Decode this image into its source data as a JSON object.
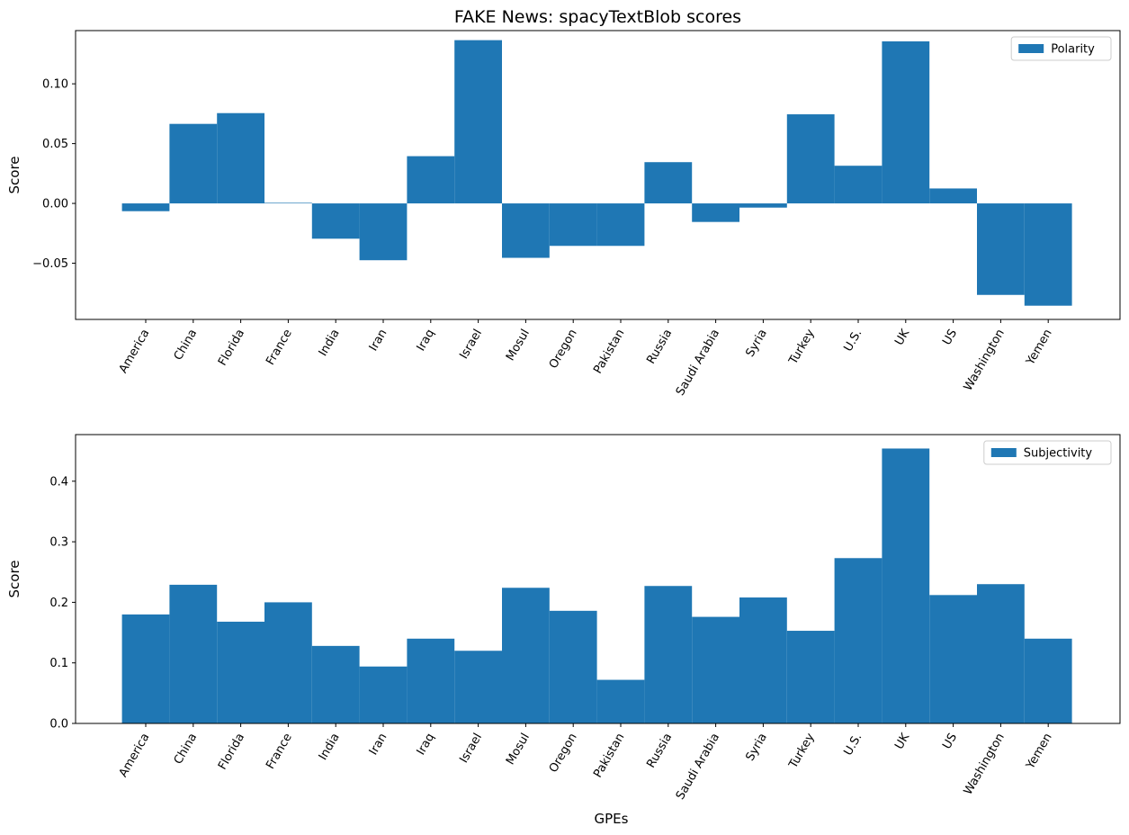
{
  "chart_data": [
    {
      "type": "bar",
      "title": "FAKE News: spacyTextBlob scores",
      "xlabel": "",
      "ylabel": "Score",
      "ylim": [
        -0.097,
        0.1445
      ],
      "yticks": [
        -0.05,
        0.0,
        0.05,
        0.1
      ],
      "ytick_labels": [
        "−0.05",
        "0.00",
        "0.05",
        "0.10"
      ],
      "grid": false,
      "legend_position": "top-right",
      "categories": [
        "America",
        "China",
        "Florida",
        "France",
        "India",
        "Iran",
        "Iraq",
        "Israel",
        "Mosul",
        "Oregon",
        "Pakistan",
        "Russia",
        "Saudi Arabia",
        "Syria",
        "Turkey",
        "U.S.",
        "UK",
        "US",
        "Washington",
        "Yemen"
      ],
      "series": [
        {
          "name": "Polarity",
          "color": "#1f77b4",
          "values": [
            -0.0065,
            0.0665,
            0.0755,
            0.0005,
            -0.0295,
            -0.0475,
            0.0395,
            0.1365,
            -0.0455,
            -0.0355,
            -0.0355,
            0.0345,
            -0.0155,
            -0.0035,
            0.0745,
            0.0315,
            0.1355,
            0.0125,
            -0.0765,
            -0.0855
          ]
        }
      ]
    },
    {
      "type": "bar",
      "title": "",
      "xlabel": "GPEs",
      "ylabel": "Score",
      "ylim": [
        0.0,
        0.477
      ],
      "yticks": [
        0.0,
        0.1,
        0.2,
        0.3,
        0.4
      ],
      "ytick_labels": [
        "0.0",
        "0.1",
        "0.2",
        "0.3",
        "0.4"
      ],
      "grid": false,
      "legend_position": "top-right",
      "categories": [
        "America",
        "China",
        "Florida",
        "France",
        "India",
        "Iran",
        "Iraq",
        "Israel",
        "Mosul",
        "Oregon",
        "Pakistan",
        "Russia",
        "Saudi Arabia",
        "Syria",
        "Turkey",
        "U.S.",
        "UK",
        "US",
        "Washington",
        "Yemen"
      ],
      "series": [
        {
          "name": "Subjectivity",
          "color": "#1f77b4",
          "values": [
            0.18,
            0.229,
            0.168,
            0.2,
            0.128,
            0.094,
            0.14,
            0.12,
            0.224,
            0.186,
            0.072,
            0.227,
            0.176,
            0.208,
            0.153,
            0.273,
            0.454,
            0.212,
            0.23,
            0.14
          ]
        }
      ]
    }
  ]
}
